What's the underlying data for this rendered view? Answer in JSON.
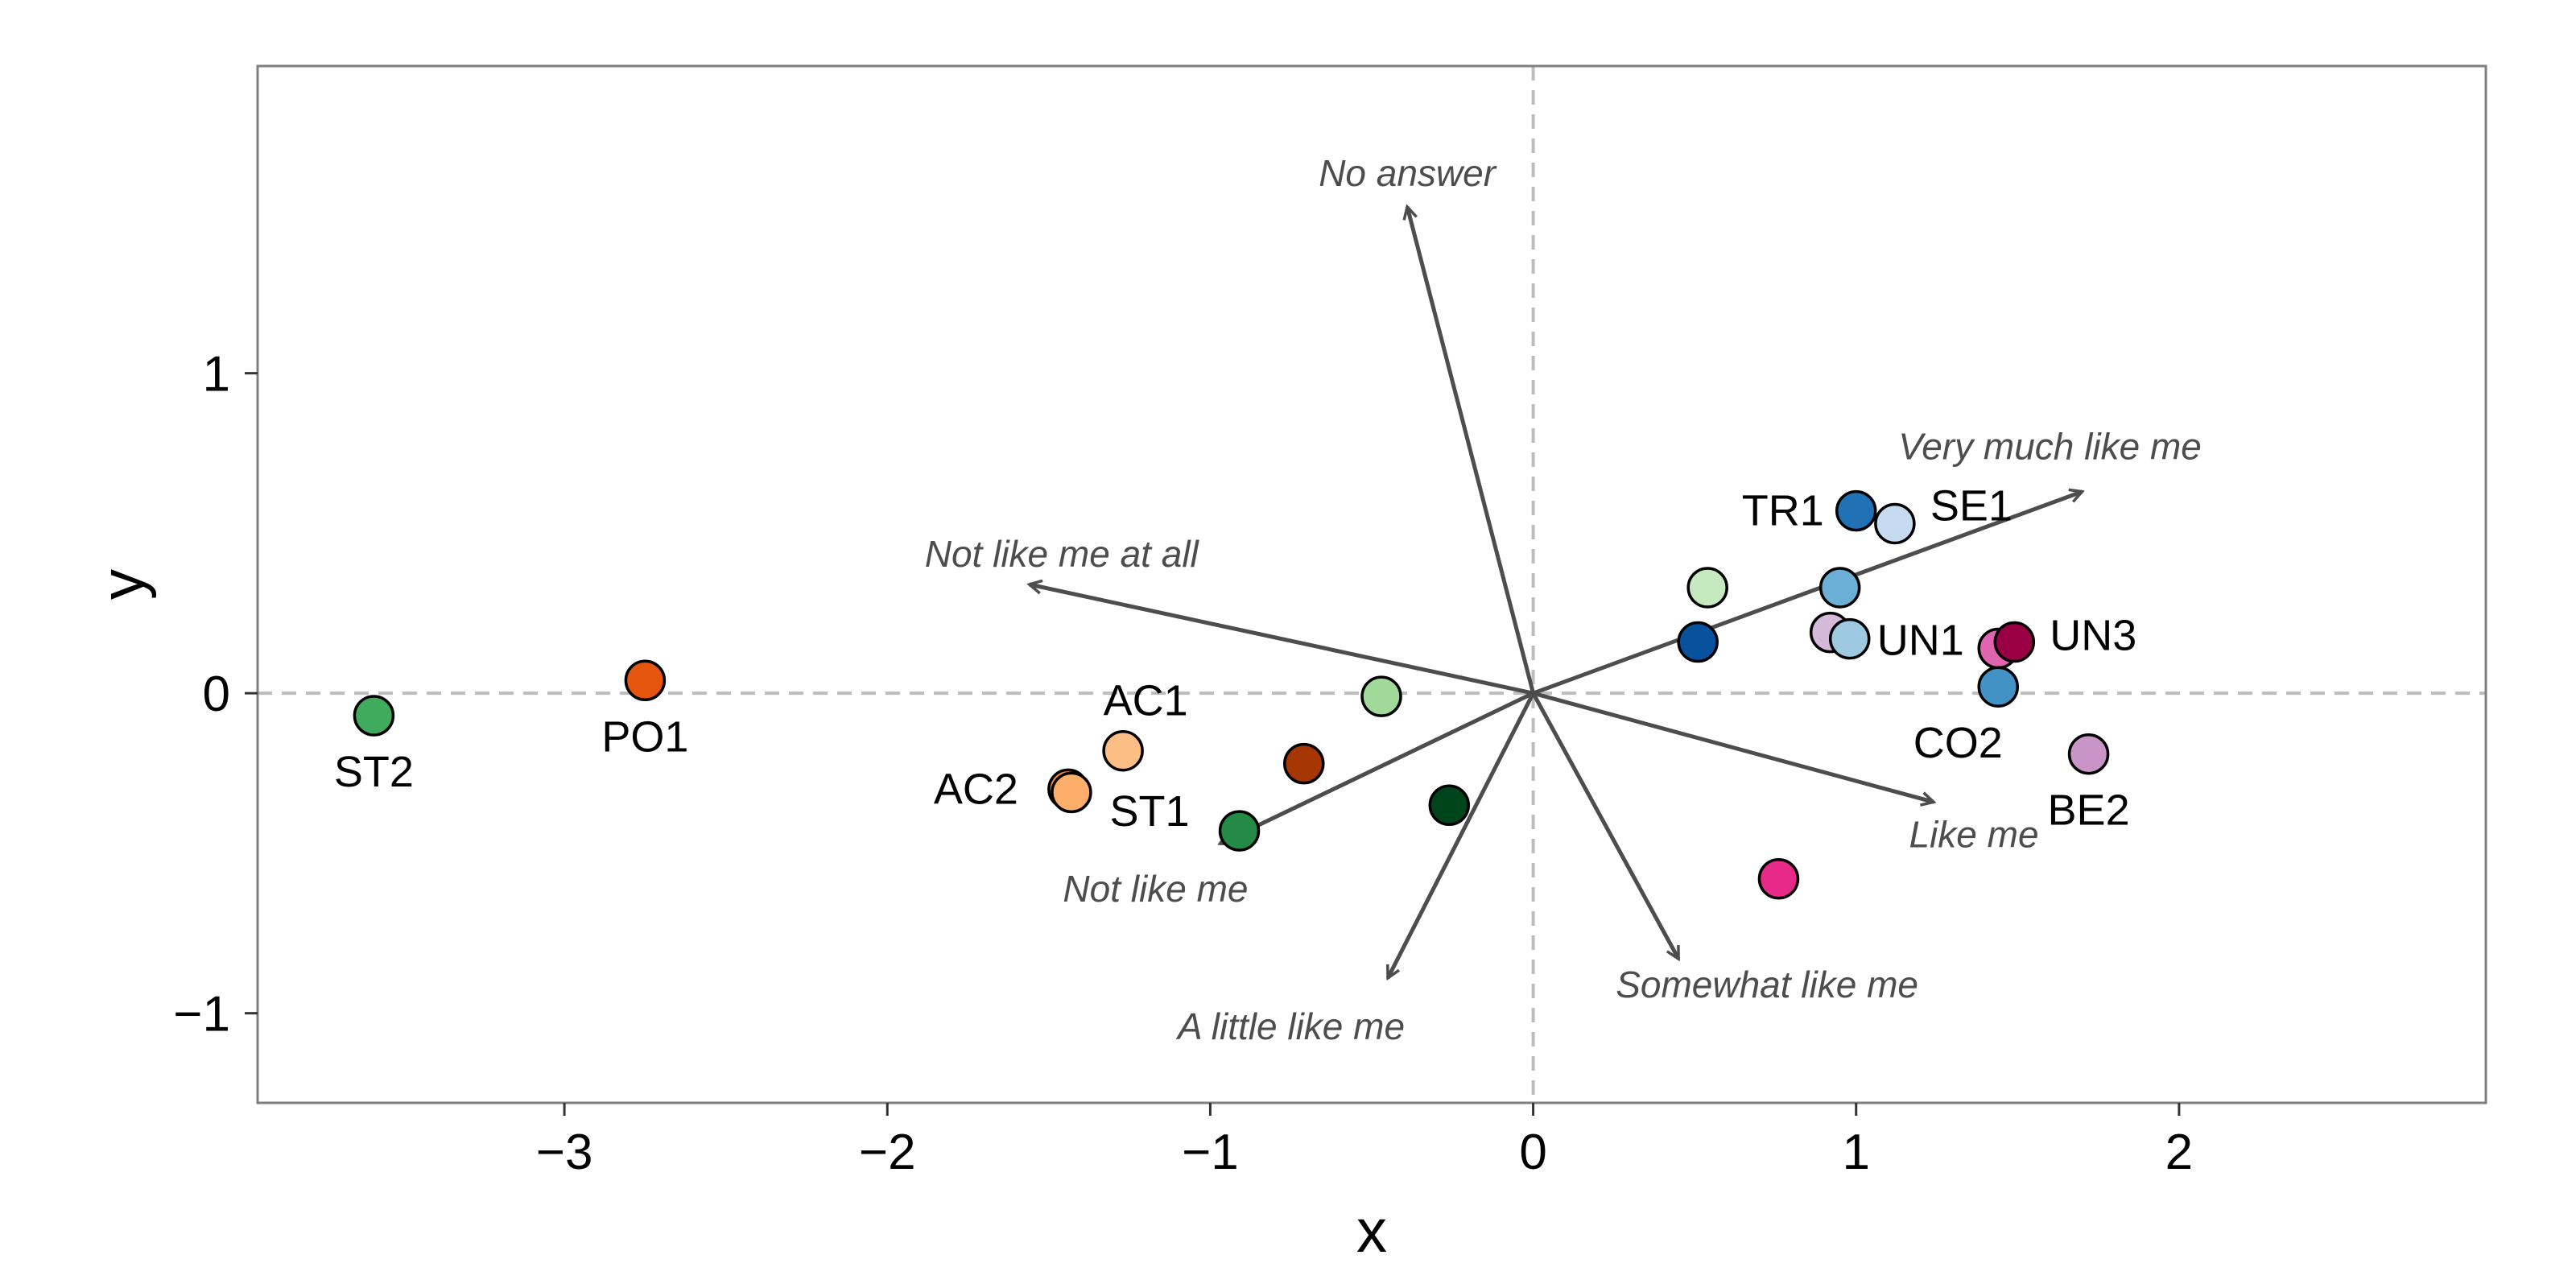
{
  "chart_data": {
    "type": "scatter",
    "xlabel": "x",
    "ylabel": "y",
    "xlim": [
      -3.95,
      2.95
    ],
    "ylim": [
      -1.28,
      1.96
    ],
    "xticks": [
      -3,
      -2,
      -1,
      0,
      1,
      2
    ],
    "yticks": [
      -1,
      0,
      1
    ],
    "reference_lines": {
      "x": 0,
      "y": 0,
      "style": "dashed",
      "color": "#bdbdbd"
    },
    "grid": false,
    "legend": "none",
    "points": [
      {
        "label": "ST2",
        "x": -3.59,
        "y": -0.07,
        "color": "#41ab5d"
      },
      {
        "label": "PO1",
        "x": -2.75,
        "y": 0.04,
        "color": "#e6550d"
      },
      {
        "label": "AC1",
        "x": -1.27,
        "y": -0.18,
        "color": "#fdbe85"
      },
      {
        "label": "AC2",
        "x": -1.44,
        "y": -0.3,
        "color": "#fd8d3c"
      },
      {
        "label": "",
        "x": -1.43,
        "y": -0.31,
        "color": "#fdae6b"
      },
      {
        "label": "ST1",
        "x": -0.91,
        "y": -0.43,
        "color": "#238b45"
      },
      {
        "label": "",
        "x": -0.71,
        "y": -0.22,
        "color": "#a63603"
      },
      {
        "label": "",
        "x": -0.47,
        "y": -0.01,
        "color": "#a1d99b"
      },
      {
        "label": "",
        "x": -0.26,
        "y": -0.35,
        "color": "#00441b"
      },
      {
        "label": "",
        "x": 0.51,
        "y": 0.16,
        "color": "#08519c"
      },
      {
        "label": "",
        "x": 0.54,
        "y": 0.33,
        "color": "#c7e9c0"
      },
      {
        "label": "TR1",
        "x": 1.0,
        "y": 0.57,
        "color": "#2171b5"
      },
      {
        "label": "SE1",
        "x": 1.12,
        "y": 0.53,
        "color": "#c6dbef"
      },
      {
        "label": "",
        "x": 0.95,
        "y": 0.33,
        "color": "#6baed6"
      },
      {
        "label": "",
        "x": 0.92,
        "y": 0.19,
        "color": "#d4b9da"
      },
      {
        "label": "UN1",
        "x": 0.98,
        "y": 0.17,
        "color": "#9ecae1"
      },
      {
        "label": "",
        "x": 1.44,
        "y": 0.14,
        "color": "#df65b0"
      },
      {
        "label": "UN3",
        "x": 1.49,
        "y": 0.16,
        "color": "#980043"
      },
      {
        "label": "CO2",
        "x": 1.44,
        "y": 0.02,
        "color": "#4292c6"
      },
      {
        "label": "BE2",
        "x": 1.72,
        "y": -0.19,
        "color": "#c994c7"
      },
      {
        "label": "",
        "x": 0.76,
        "y": -0.58,
        "color": "#e7298a"
      }
    ],
    "arrows": [
      {
        "label": "No answer",
        "x": -0.39,
        "y": 1.52
      },
      {
        "label": "Very much like me",
        "x": 1.7,
        "y": 0.63
      },
      {
        "label": "Not like me at all",
        "x": -1.56,
        "y": 0.34
      },
      {
        "label": "Like me",
        "x": 1.24,
        "y": -0.34
      },
      {
        "label": "Not like me",
        "x": -0.97,
        "y": -0.47
      },
      {
        "label": "A little like me",
        "x": -0.45,
        "y": -0.89
      },
      {
        "label": "Somewhat like me",
        "x": 0.45,
        "y": -0.83
      }
    ]
  }
}
